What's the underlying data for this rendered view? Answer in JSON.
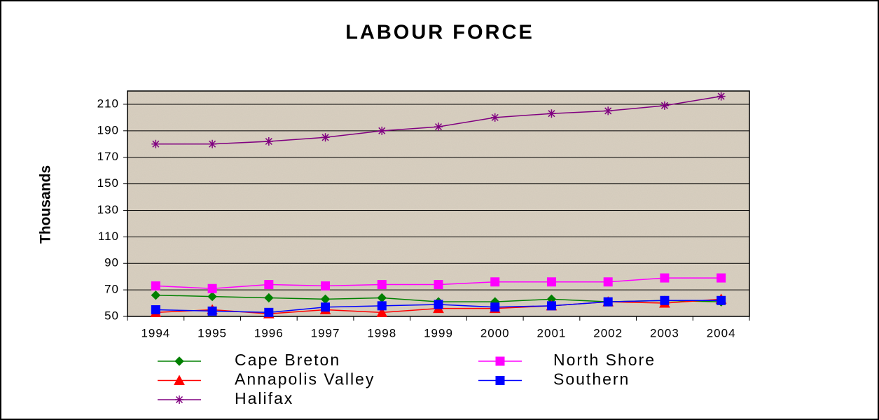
{
  "chart_data": {
    "type": "line",
    "title": "LABOUR FORCE",
    "y_label": "Thousands",
    "categories": [
      "1994",
      "1995",
      "1996",
      "1997",
      "1998",
      "1999",
      "2000",
      "2001",
      "2002",
      "2003",
      "2004"
    ],
    "series": [
      {
        "name": "Cape Breton",
        "color": "#008000",
        "marker": "diamond",
        "values": [
          66,
          65,
          64,
          63,
          64,
          61,
          61,
          63,
          61,
          62,
          61
        ]
      },
      {
        "name": "North Shore",
        "color": "#ff00ff",
        "marker": "square",
        "values": [
          73,
          71,
          74,
          73,
          74,
          74,
          76,
          76,
          76,
          79,
          79
        ]
      },
      {
        "name": "Annapolis Valley",
        "color": "#ff0000",
        "marker": "triangle",
        "values": [
          53,
          55,
          52,
          55,
          53,
          56,
          56,
          58,
          61,
          60,
          63
        ]
      },
      {
        "name": "Southern",
        "color": "#0000ff",
        "marker": "square",
        "values": [
          55,
          54,
          53,
          57,
          58,
          59,
          57,
          58,
          61,
          62,
          62
        ]
      },
      {
        "name": "Halifax",
        "color": "#800080",
        "marker": "asterisk",
        "values": [
          180,
          180,
          182,
          185,
          190,
          193,
          200,
          203,
          205,
          209,
          216
        ]
      }
    ],
    "ylim": [
      50,
      220
    ],
    "yticks": [
      50,
      70,
      90,
      110,
      130,
      150,
      170,
      190,
      210
    ],
    "grid": true
  }
}
